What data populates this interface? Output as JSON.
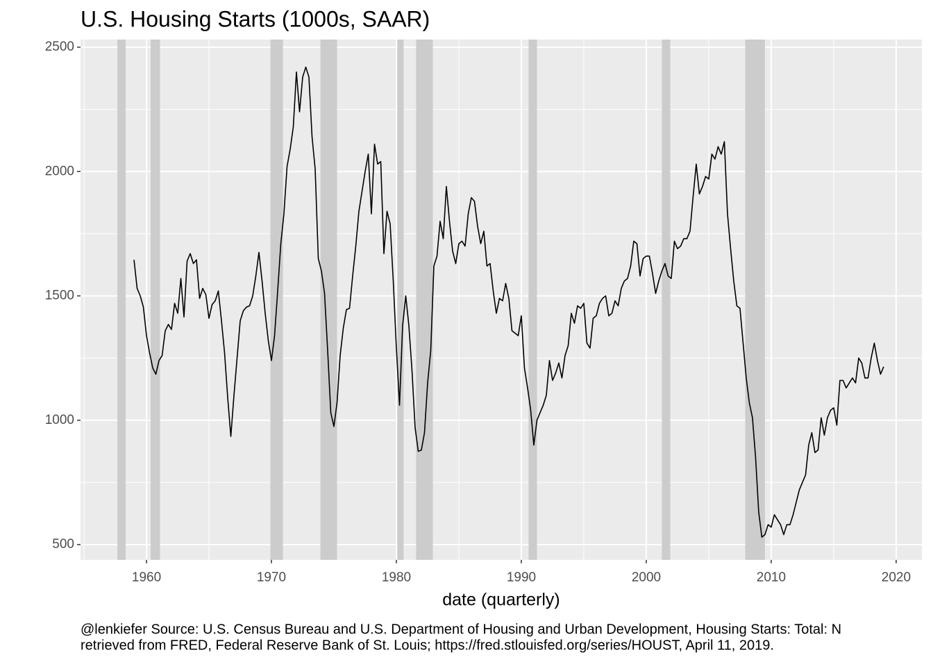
{
  "chart_data": {
    "type": "line",
    "title": "U.S. Housing Starts (1000s, SAAR)",
    "x_label": "date (quarterly)",
    "caption": [
      "@lenkiefer Source: U.S. Census Bureau and U.S. Department of Housing and Urban Development, Housing Starts: Total: N",
      "retrieved from FRED, Federal Reserve Bank of St. Louis; https://fred.stlouisfed.org/series/HOUST, April 11, 2019."
    ],
    "xlim": [
      1954.72,
      2022.06
    ],
    "xticks": [
      1960,
      1970,
      1980,
      1990,
      2000,
      2010,
      2020
    ],
    "xminorticks": [
      1955,
      1965,
      1975,
      1985,
      1995,
      2005,
      2015
    ],
    "ylim": [
      438.6,
      2530.7
    ],
    "yticks": [
      500,
      1000,
      1500,
      2000,
      2500
    ],
    "yminorticks": [
      750,
      1250,
      1750,
      2250
    ],
    "grid": true,
    "panel_color": "#ebebeb",
    "recession_color": "#cccccc",
    "recessions": [
      [
        1957.67,
        1958.33
      ],
      [
        1960.33,
        1961.08
      ],
      [
        1969.92,
        1970.92
      ],
      [
        1973.92,
        1975.25
      ],
      [
        1980.08,
        1980.58
      ],
      [
        1981.58,
        1982.92
      ],
      [
        1990.58,
        1991.25
      ],
      [
        2001.25,
        2001.92
      ],
      [
        2007.92,
        2009.5
      ]
    ],
    "series": [
      {
        "color": "#000000",
        "x": [
          1959,
          1959.25,
          1959.5,
          1959.75,
          1960,
          1960.25,
          1960.5,
          1960.75,
          1961,
          1961.25,
          1961.5,
          1961.75,
          1962,
          1962.25,
          1962.5,
          1962.75,
          1963,
          1963.25,
          1963.5,
          1963.75,
          1964,
          1964.25,
          1964.5,
          1964.75,
          1965,
          1965.25,
          1965.5,
          1965.75,
          1966,
          1966.25,
          1966.5,
          1966.75,
          1967,
          1967.25,
          1967.5,
          1967.75,
          1968,
          1968.25,
          1968.5,
          1968.75,
          1969,
          1969.25,
          1969.5,
          1969.75,
          1970,
          1970.25,
          1970.5,
          1970.75,
          1971,
          1971.25,
          1971.5,
          1971.75,
          1972,
          1972.25,
          1972.5,
          1972.75,
          1973,
          1973.25,
          1973.5,
          1973.75,
          1974,
          1974.25,
          1974.5,
          1974.75,
          1975,
          1975.25,
          1975.5,
          1975.75,
          1976,
          1976.25,
          1976.5,
          1976.75,
          1977,
          1977.25,
          1977.5,
          1977.75,
          1978,
          1978.25,
          1978.5,
          1978.75,
          1979,
          1979.25,
          1979.5,
          1979.75,
          1980,
          1980.25,
          1980.5,
          1980.75,
          1981,
          1981.25,
          1981.5,
          1981.75,
          1982,
          1982.25,
          1982.5,
          1982.75,
          1983,
          1983.25,
          1983.5,
          1983.75,
          1984,
          1984.25,
          1984.5,
          1984.75,
          1985,
          1985.25,
          1985.5,
          1985.75,
          1986,
          1986.25,
          1986.5,
          1986.75,
          1987,
          1987.25,
          1987.5,
          1987.75,
          1988,
          1988.25,
          1988.5,
          1988.75,
          1989,
          1989.25,
          1989.5,
          1989.75,
          1990,
          1990.25,
          1990.5,
          1990.75,
          1991,
          1991.25,
          1991.5,
          1991.75,
          1992,
          1992.25,
          1992.5,
          1992.75,
          1993,
          1993.25,
          1993.5,
          1993.75,
          1994,
          1994.25,
          1994.5,
          1994.75,
          1995,
          1995.25,
          1995.5,
          1995.75,
          1996,
          1996.25,
          1996.5,
          1996.75,
          1997,
          1997.25,
          1997.5,
          1997.75,
          1998,
          1998.25,
          1998.5,
          1998.75,
          1999,
          1999.25,
          1999.5,
          1999.75,
          2000,
          2000.25,
          2000.5,
          2000.75,
          2001,
          2001.25,
          2001.5,
          2001.75,
          2002,
          2002.25,
          2002.5,
          2002.75,
          2003,
          2003.25,
          2003.5,
          2003.75,
          2004,
          2004.25,
          2004.5,
          2004.75,
          2005,
          2005.25,
          2005.5,
          2005.75,
          2006,
          2006.25,
          2006.5,
          2006.75,
          2007,
          2007.25,
          2007.5,
          2007.75,
          2008,
          2008.25,
          2008.5,
          2008.75,
          2009,
          2009.25,
          2009.5,
          2009.75,
          2010,
          2010.25,
          2010.5,
          2010.75,
          2011,
          2011.25,
          2011.5,
          2011.75,
          2012,
          2012.25,
          2012.5,
          2012.75,
          2013,
          2013.25,
          2013.5,
          2013.75,
          2014,
          2014.25,
          2014.5,
          2014.75,
          2015,
          2015.25,
          2015.5,
          2015.75,
          2016,
          2016.25,
          2016.5,
          2016.75,
          2017,
          2017.25,
          2017.5,
          2017.75,
          2018,
          2018.25,
          2018.5,
          2018.75,
          2019
        ],
        "values": [
          1645,
          1530,
          1500,
          1455,
          1340,
          1270,
          1210,
          1185,
          1240,
          1260,
          1360,
          1385,
          1365,
          1470,
          1430,
          1570,
          1415,
          1640,
          1670,
          1630,
          1645,
          1490,
          1530,
          1505,
          1410,
          1465,
          1480,
          1520,
          1400,
          1270,
          1090,
          935,
          1100,
          1250,
          1400,
          1440,
          1455,
          1460,
          1500,
          1580,
          1675,
          1560,
          1430,
          1320,
          1240,
          1340,
          1520,
          1710,
          1830,
          2020,
          2090,
          2180,
          2400,
          2240,
          2380,
          2420,
          2380,
          2140,
          2010,
          1650,
          1600,
          1510,
          1280,
          1030,
          975,
          1070,
          1260,
          1370,
          1445,
          1450,
          1580,
          1700,
          1840,
          1920,
          2000,
          2070,
          1830,
          2110,
          2030,
          2040,
          1670,
          1840,
          1790,
          1560,
          1290,
          1060,
          1380,
          1500,
          1380,
          1200,
          970,
          875,
          880,
          950,
          1150,
          1280,
          1620,
          1660,
          1800,
          1730,
          1940,
          1800,
          1680,
          1630,
          1710,
          1720,
          1700,
          1830,
          1895,
          1880,
          1780,
          1710,
          1760,
          1620,
          1630,
          1520,
          1430,
          1490,
          1480,
          1550,
          1490,
          1360,
          1350,
          1340,
          1420,
          1210,
          1130,
          1040,
          900,
          1000,
          1030,
          1060,
          1100,
          1240,
          1160,
          1190,
          1230,
          1170,
          1260,
          1300,
          1430,
          1390,
          1460,
          1450,
          1470,
          1310,
          1290,
          1410,
          1420,
          1470,
          1490,
          1500,
          1420,
          1430,
          1480,
          1460,
          1530,
          1560,
          1570,
          1620,
          1720,
          1710,
          1580,
          1650,
          1660,
          1660,
          1590,
          1510,
          1560,
          1600,
          1630,
          1580,
          1570,
          1720,
          1690,
          1700,
          1730,
          1730,
          1760,
          1900,
          2030,
          1910,
          1940,
          1980,
          1970,
          2070,
          2050,
          2100,
          2070,
          2120,
          1830,
          1690,
          1560,
          1460,
          1450,
          1310,
          1170,
          1070,
          1010,
          850,
          630,
          530,
          540,
          580,
          570,
          620,
          600,
          580,
          540,
          580,
          580,
          620,
          670,
          720,
          750,
          780,
          900,
          950,
          870,
          880,
          1010,
          940,
          1010,
          1040,
          1050,
          980,
          1160,
          1160,
          1130,
          1150,
          1170,
          1150,
          1250,
          1230,
          1170,
          1170,
          1250,
          1310,
          1240,
          1185,
          1215
        ]
      }
    ]
  }
}
